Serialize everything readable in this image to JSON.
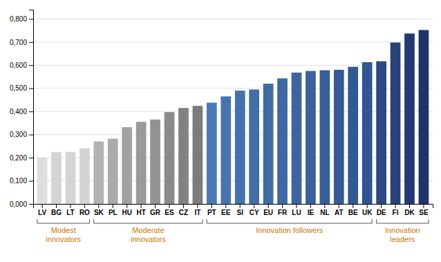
{
  "chart_data": {
    "type": "bar",
    "categories": [
      "LV",
      "BG",
      "LT",
      "RO",
      "SK",
      "PL",
      "HU",
      "HT",
      "GR",
      "ES",
      "CZ",
      "IT",
      "PT",
      "EE",
      "SI",
      "CY",
      "EU",
      "FR",
      "LU",
      "IE",
      "NL",
      "AT",
      "BE",
      "UK",
      "DE",
      "FI",
      "DK",
      "SE"
    ],
    "values": [
      0.2,
      0.225,
      0.225,
      0.24,
      0.27,
      0.282,
      0.332,
      0.355,
      0.365,
      0.397,
      0.415,
      0.424,
      0.438,
      0.465,
      0.49,
      0.495,
      0.52,
      0.543,
      0.568,
      0.575,
      0.578,
      0.58,
      0.593,
      0.613,
      0.617,
      0.698,
      0.737,
      0.752
    ],
    "colors": [
      "#dedede",
      "#d4d4d4",
      "#d4d4d4",
      "#d4d4d4",
      "#b2b2b2",
      "#aaaaaa",
      "#a2a2a2",
      "#9a9a9a",
      "#929292",
      "#8a8a8a",
      "#828282",
      "#7b7b7b",
      "#4b78b2",
      "#4874ae",
      "#4671ab",
      "#446ea8",
      "#416ba5",
      "#3f68a2",
      "#3d649e",
      "#3b619b",
      "#385e98",
      "#365b95",
      "#345892",
      "#32558f",
      "#2d4882",
      "#284179",
      "#233a71",
      "#1e3469"
    ],
    "ylim": [
      0,
      0.84
    ],
    "yticks": [
      {
        "value": 0.0,
        "label": "0,000"
      },
      {
        "value": 0.1,
        "label": "0,100"
      },
      {
        "value": 0.2,
        "label": "0,200"
      },
      {
        "value": 0.3,
        "label": "0,300"
      },
      {
        "value": 0.4,
        "label": "0,400"
      },
      {
        "value": 0.5,
        "label": "0,500"
      },
      {
        "value": 0.6,
        "label": "0,600"
      },
      {
        "value": 0.7,
        "label": "0,700"
      },
      {
        "value": 0.8,
        "label": "0,800"
      }
    ],
    "grid": true,
    "annotations": [
      {
        "text": "Modest\ninnovators",
        "from": "LV",
        "to": "RO",
        "color": "#cc7700"
      },
      {
        "text": "Moderate\ninnovators",
        "from": "SK",
        "to": "IT",
        "color": "#cc7700"
      },
      {
        "text": "Innovation followers",
        "from": "PT",
        "to": "UK",
        "color": "#cc7700"
      },
      {
        "text": "Innovation\nleaders",
        "from": "DE",
        "to": "SE",
        "color": "#cc7700"
      }
    ]
  }
}
